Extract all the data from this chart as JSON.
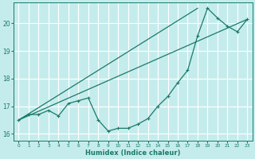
{
  "xlabel": "Humidex (Indice chaleur)",
  "bg_color": "#c5ecec",
  "grid_color": "#ffffff",
  "line_color": "#1a7a6a",
  "xlim": [
    -0.5,
    23.5
  ],
  "ylim": [
    15.75,
    20.75
  ],
  "x_ticks": [
    0,
    1,
    2,
    3,
    4,
    5,
    6,
    7,
    8,
    9,
    10,
    11,
    12,
    13,
    14,
    15,
    16,
    17,
    18,
    19,
    20,
    21,
    22,
    23
  ],
  "y_ticks": [
    16,
    17,
    18,
    19,
    20
  ],
  "curve_x": [
    0,
    1,
    2,
    3,
    4,
    5,
    6,
    7,
    8,
    9,
    10,
    11,
    12,
    13,
    14,
    15,
    16,
    17,
    18,
    19,
    20,
    21,
    22,
    23
  ],
  "curve_y": [
    16.5,
    16.7,
    16.7,
    16.85,
    16.65,
    17.1,
    17.2,
    17.3,
    16.5,
    16.1,
    16.2,
    16.2,
    16.35,
    16.55,
    17.0,
    17.35,
    17.85,
    18.3,
    19.55,
    20.55,
    20.2,
    19.9,
    19.7,
    20.15
  ],
  "line1_x": [
    0,
    23
  ],
  "line1_y": [
    16.5,
    20.15
  ],
  "line2_x": [
    0,
    18
  ],
  "line2_y": [
    16.5,
    20.55
  ],
  "xtick_fontsize": 4.2,
  "ytick_fontsize": 5.5,
  "xlabel_fontsize": 6.0
}
